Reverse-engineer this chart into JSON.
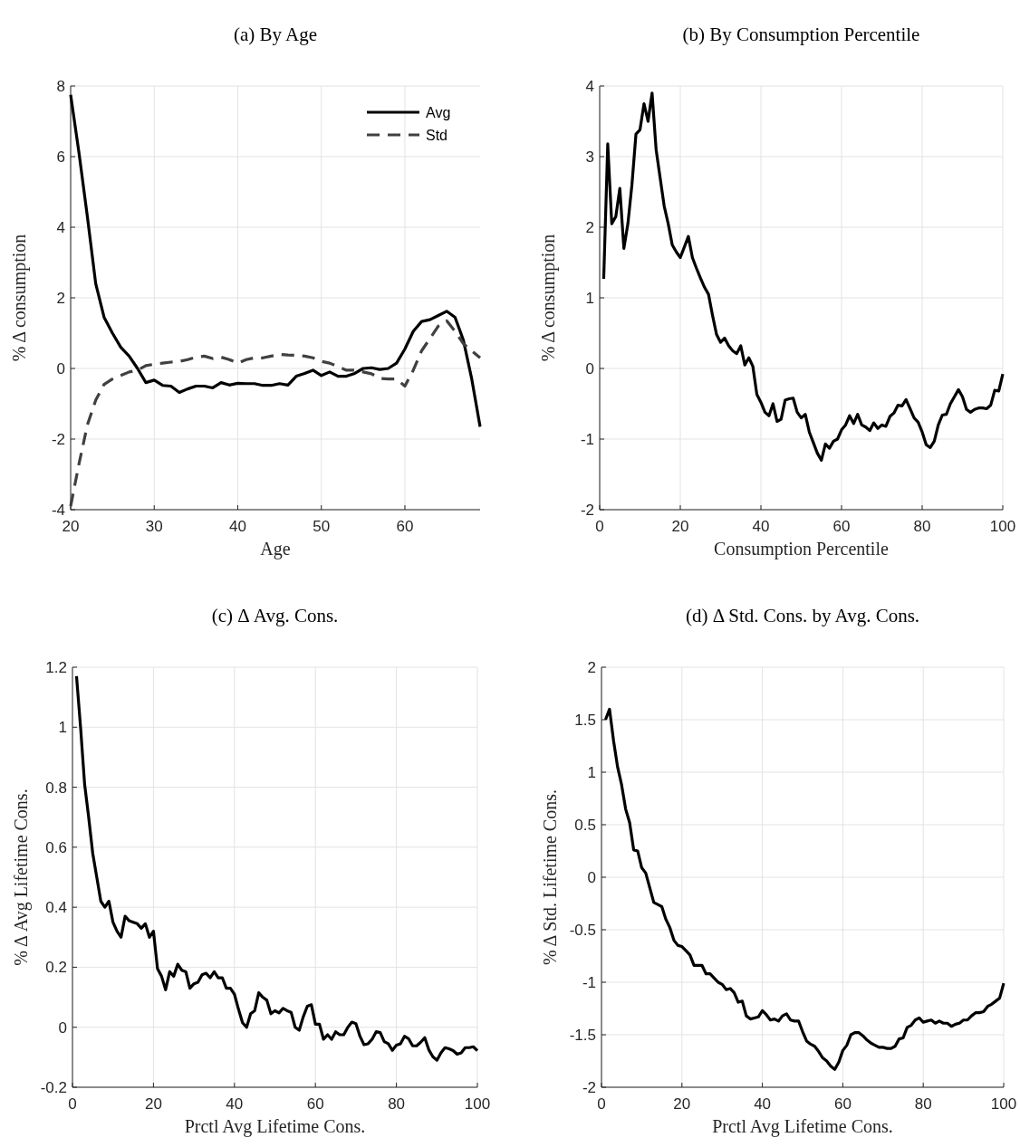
{
  "chart_data": [
    {
      "type": "line",
      "title": "(a)  By Age",
      "xlabel": "Age",
      "ylabel": "% Δ consumption",
      "xlim": [
        20,
        69
      ],
      "xticks": [
        20,
        30,
        40,
        50,
        60
      ],
      "ylim": [
        -4,
        8
      ],
      "yticks": [
        -4,
        -2,
        0,
        2,
        4,
        6,
        8
      ],
      "grid": true,
      "legend": "top right",
      "x": [
        20,
        21,
        22,
        23,
        24,
        25,
        26,
        27,
        28,
        29,
        30,
        31,
        32,
        33,
        34,
        35,
        36,
        37,
        38,
        39,
        40,
        41,
        42,
        43,
        44,
        45,
        46,
        47,
        48,
        49,
        50,
        51,
        52,
        53,
        54,
        55,
        56,
        57,
        58,
        59,
        60,
        61,
        62,
        63,
        64,
        65,
        66,
        67,
        68,
        69
      ],
      "series": [
        {
          "name": "Avg",
          "color": "#000000",
          "line_style": "solid",
          "values": [
            7.75,
            6.1,
            4.3,
            2.4,
            1.45,
            1.0,
            0.6,
            0.35,
            0.0,
            -0.4,
            -0.33,
            -0.48,
            -0.5,
            -0.68,
            -0.58,
            -0.5,
            -0.5,
            -0.55,
            -0.4,
            -0.47,
            -0.42,
            -0.43,
            -0.43,
            -0.48,
            -0.48,
            -0.43,
            -0.47,
            -0.22,
            -0.14,
            -0.05,
            -0.2,
            -0.1,
            -0.22,
            -0.22,
            -0.14,
            0.0,
            0.02,
            -0.03,
            0.0,
            0.15,
            0.55,
            1.05,
            1.33,
            1.38,
            1.5,
            1.62,
            1.45,
            0.8,
            -0.3,
            -1.65
          ]
        },
        {
          "name": "Std",
          "color": "#404040",
          "line_style": "dashed",
          "values": [
            -3.9,
            -2.7,
            -1.6,
            -0.9,
            -0.45,
            -0.3,
            -0.2,
            -0.1,
            -0.05,
            0.08,
            0.12,
            0.15,
            0.18,
            0.2,
            0.25,
            0.32,
            0.35,
            0.28,
            0.32,
            0.25,
            0.15,
            0.25,
            0.3,
            0.3,
            0.35,
            0.4,
            0.38,
            0.37,
            0.35,
            0.3,
            0.2,
            0.15,
            0.05,
            -0.05,
            -0.05,
            -0.1,
            -0.15,
            -0.28,
            -0.3,
            -0.3,
            -0.5,
            -0.05,
            0.5,
            0.85,
            1.2,
            1.35,
            1.05,
            0.7,
            0.5,
            0.3
          ]
        }
      ]
    },
    {
      "type": "line",
      "title": "(b)  By Consumption Percentile",
      "xlabel": "Consumption Percentile",
      "ylabel": "% Δ consumption",
      "xlim": [
        0,
        100
      ],
      "xticks": [
        0,
        20,
        40,
        60,
        80,
        100
      ],
      "ylim": [
        -2,
        4
      ],
      "yticks": [
        -2,
        -1,
        0,
        1,
        2,
        3,
        4
      ],
      "grid": true,
      "x": [
        1,
        2,
        3,
        4,
        5,
        6,
        7,
        8,
        9,
        10,
        11,
        12,
        13,
        14,
        15,
        16,
        17,
        18,
        19,
        20,
        21,
        22,
        23,
        24,
        25,
        26,
        27,
        28,
        29,
        30,
        31,
        32,
        33,
        34,
        35,
        36,
        37,
        38,
        39,
        40,
        41,
        42,
        43,
        44,
        45,
        46,
        47,
        48,
        49,
        50,
        51,
        52,
        53,
        54,
        55,
        56,
        57,
        58,
        59,
        60,
        61,
        62,
        63,
        64,
        65,
        66,
        67,
        68,
        69,
        70,
        71,
        72,
        73,
        74,
        75,
        76,
        77,
        78,
        79,
        80,
        81,
        82,
        83,
        84,
        85,
        86,
        87,
        88,
        89,
        90,
        91,
        92,
        93,
        94,
        95,
        96,
        97,
        98,
        99,
        100
      ],
      "series": [
        {
          "color": "#000000",
          "values": [
            1.27,
            3.18,
            2.05,
            2.15,
            2.55,
            1.7,
            2.05,
            2.6,
            3.32,
            3.38,
            3.75,
            3.5,
            3.9,
            3.1,
            2.7,
            2.3,
            2.05,
            1.75,
            1.65,
            1.57,
            1.72,
            1.87,
            1.57,
            1.42,
            1.28,
            1.15,
            1.05,
            0.75,
            0.48,
            0.37,
            0.43,
            0.32,
            0.25,
            0.21,
            0.32,
            0.05,
            0.15,
            0.03,
            -0.37,
            -0.48,
            -0.62,
            -0.67,
            -0.5,
            -0.75,
            -0.72,
            -0.45,
            -0.43,
            -0.42,
            -0.62,
            -0.7,
            -0.65,
            -0.9,
            -1.05,
            -1.2,
            -1.3,
            -1.07,
            -1.13,
            -1.03,
            -1.0,
            -0.87,
            -0.8,
            -0.67,
            -0.78,
            -0.65,
            -0.8,
            -0.83,
            -0.88,
            -0.77,
            -0.85,
            -0.8,
            -0.82,
            -0.68,
            -0.63,
            -0.52,
            -0.53,
            -0.44,
            -0.57,
            -0.7,
            -0.76,
            -0.9,
            -1.08,
            -1.12,
            -1.03,
            -0.8,
            -0.66,
            -0.65,
            -0.5,
            -0.4,
            -0.3,
            -0.4,
            -0.58,
            -0.62,
            -0.58,
            -0.56,
            -0.56,
            -0.57,
            -0.52,
            -0.31,
            -0.32,
            -0.08
          ]
        }
      ]
    },
    {
      "type": "line",
      "title": "(c)  Δ Avg. Cons.",
      "xlabel": "Prctl Avg Lifetime Cons.",
      "ylabel": "% Δ Avg Lifetime Cons.",
      "xlim": [
        0,
        100
      ],
      "xticks": [
        0,
        20,
        40,
        60,
        80,
        100
      ],
      "ylim": [
        -0.2,
        1.2
      ],
      "yticks": [
        -0.2,
        0,
        0.2,
        0.4,
        0.6,
        0.8,
        1,
        1.2
      ],
      "grid": true,
      "x": [
        1,
        2,
        3,
        4,
        5,
        6,
        7,
        8,
        9,
        10,
        11,
        12,
        13,
        14,
        15,
        16,
        17,
        18,
        19,
        20,
        21,
        22,
        23,
        24,
        25,
        26,
        27,
        28,
        29,
        30,
        31,
        32,
        33,
        34,
        35,
        36,
        37,
        38,
        39,
        40,
        41,
        42,
        43,
        44,
        45,
        46,
        47,
        48,
        49,
        50,
        51,
        52,
        53,
        54,
        55,
        56,
        57,
        58,
        59,
        60,
        61,
        62,
        63,
        64,
        65,
        66,
        67,
        68,
        69,
        70,
        71,
        72,
        73,
        74,
        75,
        76,
        77,
        78,
        79,
        80,
        81,
        82,
        83,
        84,
        85,
        86,
        87,
        88,
        89,
        90,
        91,
        92,
        93,
        94,
        95,
        96,
        97,
        98,
        99,
        100
      ],
      "series": [
        {
          "color": "#000000",
          "values": [
            1.17,
            1.0,
            0.81,
            0.7,
            0.58,
            0.5,
            0.42,
            0.4,
            0.42,
            0.35,
            0.32,
            0.3,
            0.37,
            0.355,
            0.35,
            0.345,
            0.33,
            0.345,
            0.3,
            0.32,
            0.195,
            0.17,
            0.125,
            0.185,
            0.17,
            0.21,
            0.19,
            0.185,
            0.13,
            0.145,
            0.15,
            0.175,
            0.18,
            0.165,
            0.185,
            0.165,
            0.165,
            0.13,
            0.13,
            0.11,
            0.06,
            0.015,
            0.0,
            0.045,
            0.055,
            0.115,
            0.1,
            0.09,
            0.045,
            0.055,
            0.048,
            0.063,
            0.055,
            0.05,
            0.0,
            -0.01,
            0.035,
            0.07,
            0.075,
            0.01,
            0.01,
            -0.04,
            -0.025,
            -0.04,
            -0.015,
            -0.025,
            -0.025,
            0.0,
            0.017,
            0.012,
            -0.03,
            -0.058,
            -0.055,
            -0.04,
            -0.015,
            -0.018,
            -0.048,
            -0.055,
            -0.077,
            -0.06,
            -0.055,
            -0.03,
            -0.038,
            -0.062,
            -0.062,
            -0.05,
            -0.035,
            -0.075,
            -0.098,
            -0.11,
            -0.085,
            -0.068,
            -0.072,
            -0.078,
            -0.09,
            -0.085,
            -0.068,
            -0.068,
            -0.065,
            -0.078
          ]
        }
      ]
    },
    {
      "type": "line",
      "title": "(d)  Δ Std. Cons. by Avg. Cons.",
      "xlabel": "Prctl Avg Lifetime Cons.",
      "ylabel": "% Δ Std. Lifetime Cons.",
      "xlim": [
        0,
        100
      ],
      "xticks": [
        0,
        20,
        40,
        60,
        80,
        100
      ],
      "ylim": [
        -2,
        2
      ],
      "yticks": [
        -2,
        -1.5,
        -1,
        -0.5,
        0,
        0.5,
        1,
        1.5,
        2
      ],
      "grid": true,
      "x": [
        1,
        2,
        3,
        4,
        5,
        6,
        7,
        8,
        9,
        10,
        11,
        12,
        13,
        14,
        15,
        16,
        17,
        18,
        19,
        20,
        21,
        22,
        23,
        24,
        25,
        26,
        27,
        28,
        29,
        30,
        31,
        32,
        33,
        34,
        35,
        36,
        37,
        38,
        39,
        40,
        41,
        42,
        43,
        44,
        45,
        46,
        47,
        48,
        49,
        50,
        51,
        52,
        53,
        54,
        55,
        56,
        57,
        58,
        59,
        60,
        61,
        62,
        63,
        64,
        65,
        66,
        67,
        68,
        69,
        70,
        71,
        72,
        73,
        74,
        75,
        76,
        77,
        78,
        79,
        80,
        81,
        82,
        83,
        84,
        85,
        86,
        87,
        88,
        89,
        90,
        91,
        92,
        93,
        94,
        95,
        96,
        97,
        98,
        99,
        100
      ],
      "series": [
        {
          "color": "#000000",
          "values": [
            1.5,
            1.6,
            1.3,
            1.05,
            0.88,
            0.65,
            0.52,
            0.26,
            0.25,
            0.09,
            0.04,
            -0.1,
            -0.24,
            -0.26,
            -0.28,
            -0.4,
            -0.48,
            -0.6,
            -0.65,
            -0.66,
            -0.7,
            -0.74,
            -0.84,
            -0.84,
            -0.84,
            -0.92,
            -0.92,
            -0.96,
            -1.0,
            -1.02,
            -1.07,
            -1.06,
            -1.1,
            -1.19,
            -1.18,
            -1.32,
            -1.35,
            -1.34,
            -1.33,
            -1.27,
            -1.31,
            -1.36,
            -1.35,
            -1.37,
            -1.32,
            -1.3,
            -1.36,
            -1.37,
            -1.37,
            -1.47,
            -1.56,
            -1.59,
            -1.61,
            -1.66,
            -1.72,
            -1.75,
            -1.8,
            -1.83,
            -1.76,
            -1.65,
            -1.6,
            -1.5,
            -1.48,
            -1.48,
            -1.51,
            -1.55,
            -1.58,
            -1.6,
            -1.62,
            -1.62,
            -1.63,
            -1.63,
            -1.61,
            -1.54,
            -1.53,
            -1.43,
            -1.41,
            -1.36,
            -1.34,
            -1.38,
            -1.37,
            -1.36,
            -1.39,
            -1.37,
            -1.39,
            -1.39,
            -1.42,
            -1.4,
            -1.39,
            -1.36,
            -1.36,
            -1.32,
            -1.29,
            -1.29,
            -1.28,
            -1.23,
            -1.21,
            -1.18,
            -1.15,
            -1.01
          ]
        }
      ]
    }
  ]
}
